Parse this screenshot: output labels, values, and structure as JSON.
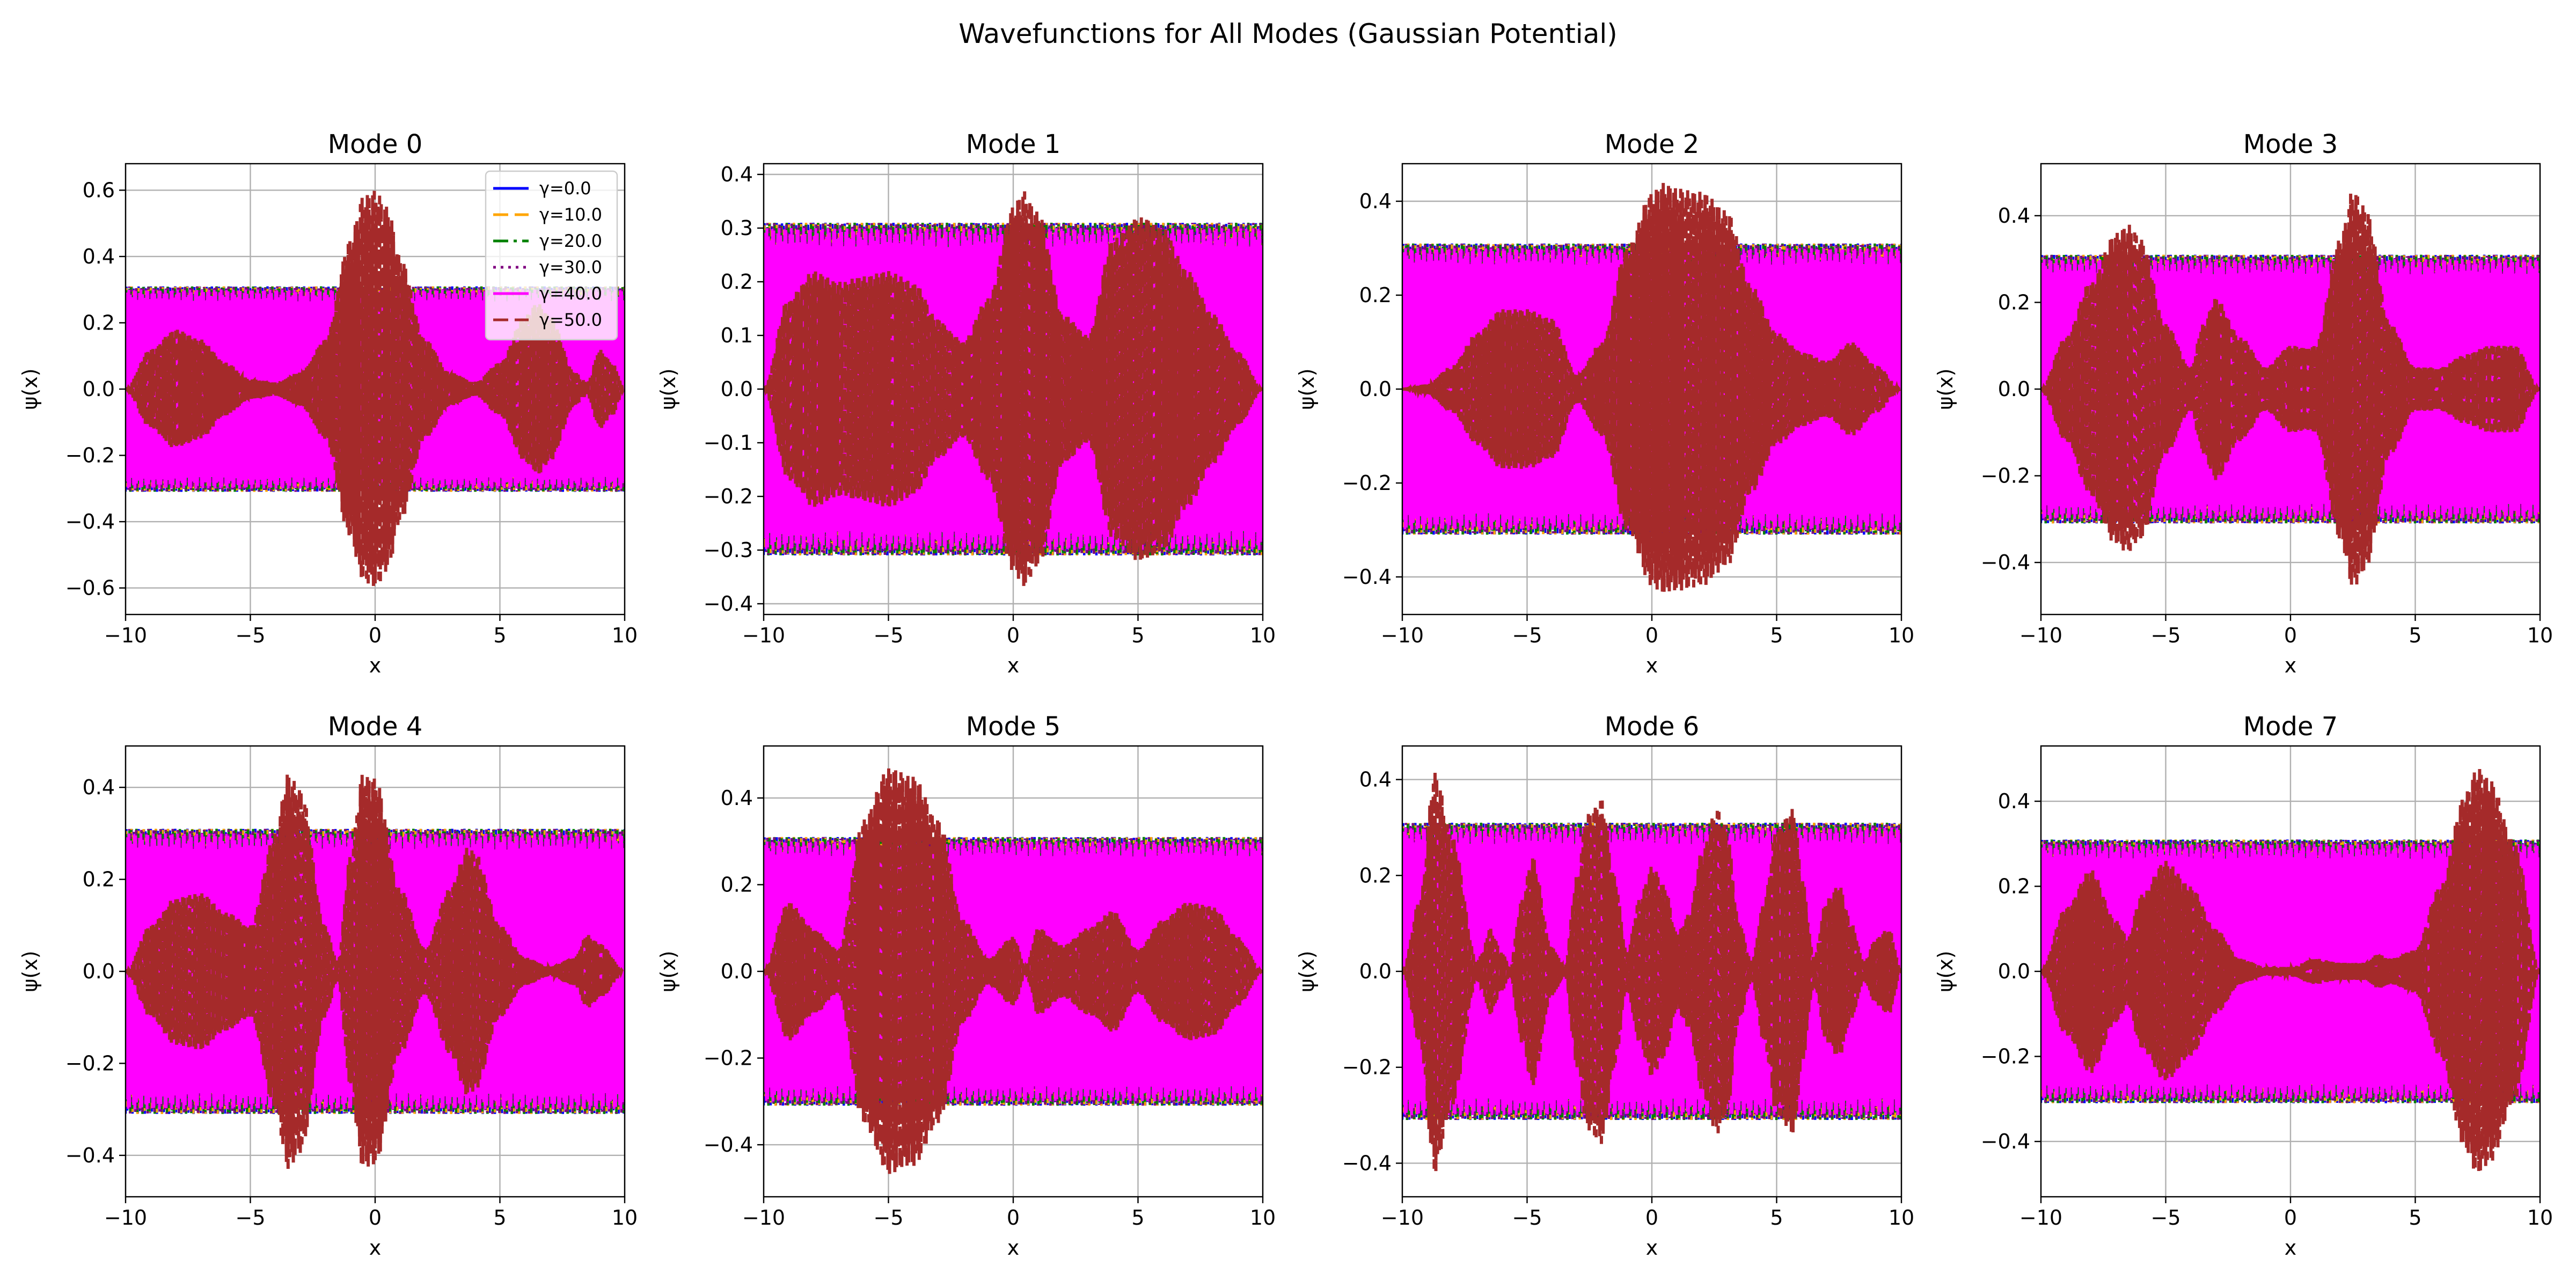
{
  "figure": {
    "title": "Wavefunctions for All Modes (Gaussian Potential)"
  },
  "colors": {
    "series": [
      "#0000ff",
      "#ffa500",
      "#008000",
      "#800080",
      "#ff00ff",
      "#a52a2a"
    ],
    "grid": "#b0b0b0",
    "background": "#ffffff"
  },
  "chart_data": [
    {
      "type": "line",
      "title": "Mode 0",
      "xlabel": "x",
      "ylabel": "ψ(x)",
      "xlim": [
        -10,
        10
      ],
      "ylim": [
        -0.68,
        0.68
      ],
      "grid": true,
      "xticks": [
        "−10",
        "−5",
        "0",
        "5",
        "10"
      ],
      "yticks": [
        {
          "v": -0.6,
          "t": "−0.6"
        },
        {
          "v": -0.4,
          "t": "−0.4"
        },
        {
          "v": -0.2,
          "t": "−0.2"
        },
        {
          "v": 0.0,
          "t": "0.0"
        },
        {
          "v": 0.2,
          "t": "0.2"
        },
        {
          "v": 0.4,
          "t": "0.4"
        },
        {
          "v": 0.6,
          "t": "0.6"
        }
      ],
      "legend": {
        "placement": "upper-right",
        "entries": [
          "γ=0.0",
          "γ=10.0",
          "γ=20.0",
          "γ=30.0",
          "γ=40.0",
          "γ=50.0"
        ]
      },
      "series": [
        {
          "gamma": 0.0,
          "style": "solid",
          "amplitude": 0.31
        },
        {
          "gamma": 10.0,
          "style": "dashed",
          "amplitude": 0.31
        },
        {
          "gamma": 20.0,
          "style": "dashdot",
          "amplitude": 0.31
        },
        {
          "gamma": 30.0,
          "style": "dotted",
          "amplitude": 0.31
        },
        {
          "gamma": 40.0,
          "style": "solid",
          "amplitude": 0.3
        },
        {
          "gamma": 50.0,
          "style": "dashed",
          "envelope": {
            "x": [
              -10,
              -9,
              -8,
              -7,
              -6,
              -5,
              -4,
              -3,
              -2,
              -1,
              -0.5,
              0,
              0.5,
              1,
              2,
              3,
              4,
              5,
              6,
              6.5,
              7,
              8,
              8.5,
              9,
              9.5,
              10
            ],
            "y": [
              0,
              0.12,
              0.18,
              0.15,
              0.08,
              0.03,
              0.02,
              0.05,
              0.15,
              0.45,
              0.58,
              0.6,
              0.55,
              0.4,
              0.15,
              0.05,
              0.02,
              0.08,
              0.22,
              0.26,
              0.22,
              0.05,
              0.02,
              0.12,
              0.08,
              0
            ]
          }
        }
      ]
    },
    {
      "type": "line",
      "title": "Mode 1",
      "xlabel": "x",
      "ylabel": "ψ(x)",
      "xlim": [
        -10,
        10
      ],
      "ylim": [
        -0.42,
        0.42
      ],
      "grid": true,
      "xticks": [
        "−10",
        "−5",
        "0",
        "5",
        "10"
      ],
      "yticks": [
        {
          "v": -0.4,
          "t": "−0.4"
        },
        {
          "v": -0.3,
          "t": "−0.3"
        },
        {
          "v": -0.2,
          "t": "−0.2"
        },
        {
          "v": -0.1,
          "t": "−0.1"
        },
        {
          "v": 0.0,
          "t": "0.0"
        },
        {
          "v": 0.1,
          "t": "0.1"
        },
        {
          "v": 0.2,
          "t": "0.2"
        },
        {
          "v": 0.3,
          "t": "0.3"
        },
        {
          "v": 0.4,
          "t": "0.4"
        }
      ],
      "series": [
        {
          "gamma": 0.0,
          "style": "solid",
          "amplitude": 0.31
        },
        {
          "gamma": 10.0,
          "style": "dashed",
          "amplitude": 0.31
        },
        {
          "gamma": 20.0,
          "style": "dashdot",
          "amplitude": 0.31
        },
        {
          "gamma": 30.0,
          "style": "dotted",
          "amplitude": 0.31
        },
        {
          "gamma": 40.0,
          "style": "solid",
          "amplitude": 0.3
        },
        {
          "gamma": 50.0,
          "style": "dashed",
          "envelope": {
            "x": [
              -10,
              -9,
              -8,
              -7,
              -6,
              -5,
              -4,
              -3,
              -2,
              -1,
              0,
              0.4,
              1,
              2,
              3,
              4,
              5,
              5.3,
              6,
              7,
              8,
              9,
              10
            ],
            "y": [
              0,
              0.17,
              0.22,
              0.2,
              0.21,
              0.22,
              0.2,
              0.13,
              0.09,
              0.17,
              0.34,
              0.37,
              0.33,
              0.14,
              0.1,
              0.28,
              0.32,
              0.32,
              0.3,
              0.22,
              0.14,
              0.07,
              0
            ]
          }
        }
      ]
    },
    {
      "type": "line",
      "title": "Mode 2",
      "xlabel": "x",
      "ylabel": "ψ(x)",
      "xlim": [
        -10,
        10
      ],
      "ylim": [
        -0.48,
        0.48
      ],
      "grid": true,
      "xticks": [
        "−10",
        "−5",
        "0",
        "5",
        "10"
      ],
      "yticks": [
        {
          "v": -0.4,
          "t": "−0.4"
        },
        {
          "v": -0.2,
          "t": "−0.2"
        },
        {
          "v": 0.0,
          "t": "0.0"
        },
        {
          "v": 0.2,
          "t": "0.2"
        },
        {
          "v": 0.4,
          "t": "0.4"
        }
      ],
      "series": [
        {
          "gamma": 0.0,
          "style": "solid",
          "amplitude": 0.31
        },
        {
          "gamma": 10.0,
          "style": "dashed",
          "amplitude": 0.31
        },
        {
          "gamma": 20.0,
          "style": "dashdot",
          "amplitude": 0.31
        },
        {
          "gamma": 30.0,
          "style": "dotted",
          "amplitude": 0.31
        },
        {
          "gamma": 40.0,
          "style": "solid",
          "amplitude": 0.3
        },
        {
          "gamma": 50.0,
          "style": "dashed",
          "envelope": {
            "x": [
              -10,
              -9,
              -8,
              -7,
              -6,
              -5,
              -4,
              -3,
              -2,
              -1,
              0,
              0.5,
              1,
              2,
              3,
              4,
              5,
              6,
              7,
              8,
              9,
              10
            ],
            "y": [
              0,
              0.01,
              0.05,
              0.12,
              0.17,
              0.17,
              0.15,
              0.03,
              0.1,
              0.3,
              0.42,
              0.44,
              0.43,
              0.42,
              0.38,
              0.22,
              0.12,
              0.08,
              0.06,
              0.1,
              0.05,
              0
            ]
          }
        }
      ]
    },
    {
      "type": "line",
      "title": "Mode 3",
      "xlabel": "x",
      "ylabel": "ψ(x)",
      "xlim": [
        -10,
        10
      ],
      "ylim": [
        -0.52,
        0.52
      ],
      "grid": true,
      "xticks": [
        "−10",
        "−5",
        "0",
        "5",
        "10"
      ],
      "yticks": [
        {
          "v": -0.4,
          "t": "−0.4"
        },
        {
          "v": -0.2,
          "t": "−0.2"
        },
        {
          "v": 0.0,
          "t": "0.0"
        },
        {
          "v": 0.2,
          "t": "0.2"
        },
        {
          "v": 0.4,
          "t": "0.4"
        }
      ],
      "series": [
        {
          "gamma": 0.0,
          "style": "solid",
          "amplitude": 0.31
        },
        {
          "gamma": 10.0,
          "style": "dashed",
          "amplitude": 0.31
        },
        {
          "gamma": 20.0,
          "style": "dashdot",
          "amplitude": 0.31
        },
        {
          "gamma": 30.0,
          "style": "dotted",
          "amplitude": 0.31
        },
        {
          "gamma": 40.0,
          "style": "solid",
          "amplitude": 0.3
        },
        {
          "gamma": 50.0,
          "style": "dashed",
          "envelope": {
            "x": [
              -10,
              -9,
              -8,
              -7,
              -6.5,
              -6,
              -5,
              -4,
              -3.5,
              -3,
              -2,
              -1,
              0,
              1,
              2,
              2.5,
              3,
              4,
              5,
              6,
              7,
              8,
              9,
              10
            ],
            "y": [
              0,
              0.12,
              0.25,
              0.36,
              0.38,
              0.35,
              0.15,
              0.05,
              0.15,
              0.21,
              0.12,
              0.05,
              0.1,
              0.1,
              0.35,
              0.46,
              0.42,
              0.15,
              0.05,
              0.05,
              0.08,
              0.1,
              0.1,
              0
            ]
          }
        }
      ]
    },
    {
      "type": "line",
      "title": "Mode 4",
      "xlabel": "x",
      "ylabel": "ψ(x)",
      "xlim": [
        -10,
        10
      ],
      "ylim": [
        -0.49,
        0.49
      ],
      "grid": true,
      "xticks": [
        "−10",
        "−5",
        "0",
        "5",
        "10"
      ],
      "yticks": [
        {
          "v": -0.4,
          "t": "−0.4"
        },
        {
          "v": -0.2,
          "t": "−0.2"
        },
        {
          "v": 0.0,
          "t": "0.0"
        },
        {
          "v": 0.2,
          "t": "0.2"
        },
        {
          "v": 0.4,
          "t": "0.4"
        }
      ],
      "series": [
        {
          "gamma": 0.0,
          "style": "solid",
          "amplitude": 0.31
        },
        {
          "gamma": 10.0,
          "style": "dashed",
          "amplitude": 0.31
        },
        {
          "gamma": 20.0,
          "style": "dashdot",
          "amplitude": 0.31
        },
        {
          "gamma": 30.0,
          "style": "dotted",
          "amplitude": 0.31
        },
        {
          "gamma": 40.0,
          "style": "solid",
          "amplitude": 0.3
        },
        {
          "gamma": 50.0,
          "style": "dashed",
          "envelope": {
            "x": [
              -10,
              -9,
              -8,
              -7,
              -6,
              -5,
              -4,
              -3.5,
              -3,
              -2,
              -1.5,
              -1,
              -0.5,
              0,
              1,
              2,
              3,
              3.7,
              4,
              5,
              6,
              7,
              8,
              8.5,
              9,
              10
            ],
            "y": [
              0,
              0.1,
              0.16,
              0.17,
              0.13,
              0.1,
              0.3,
              0.43,
              0.4,
              0.1,
              0.02,
              0.25,
              0.43,
              0.42,
              0.18,
              0.05,
              0.18,
              0.27,
              0.26,
              0.1,
              0.03,
              0.01,
              0.03,
              0.08,
              0.06,
              0
            ]
          }
        }
      ]
    },
    {
      "type": "line",
      "title": "Mode 5",
      "xlabel": "x",
      "ylabel": "ψ(x)",
      "xlim": [
        -10,
        10
      ],
      "ylim": [
        -0.52,
        0.52
      ],
      "grid": true,
      "xticks": [
        "−10",
        "−5",
        "0",
        "5",
        "10"
      ],
      "yticks": [
        {
          "v": -0.4,
          "t": "−0.4"
        },
        {
          "v": -0.2,
          "t": "−0.2"
        },
        {
          "v": 0.0,
          "t": "0.0"
        },
        {
          "v": 0.2,
          "t": "0.2"
        },
        {
          "v": 0.4,
          "t": "0.4"
        }
      ],
      "series": [
        {
          "gamma": 0.0,
          "style": "solid",
          "amplitude": 0.31
        },
        {
          "gamma": 10.0,
          "style": "dashed",
          "amplitude": 0.31
        },
        {
          "gamma": 20.0,
          "style": "dashdot",
          "amplitude": 0.31
        },
        {
          "gamma": 30.0,
          "style": "dotted",
          "amplitude": 0.31
        },
        {
          "gamma": 40.0,
          "style": "solid",
          "amplitude": 0.3
        },
        {
          "gamma": 50.0,
          "style": "dashed",
          "envelope": {
            "x": [
              -10,
              -9,
              -8,
              -7,
              -6,
              -5,
              -4,
              -3,
              -2,
              -1,
              0,
              0.5,
              1,
              2,
              3,
              4,
              5,
              6,
              7,
              8,
              9,
              10
            ],
            "y": [
              0,
              0.16,
              0.1,
              0.05,
              0.35,
              0.47,
              0.45,
              0.35,
              0.12,
              0.03,
              0.08,
              0.01,
              0.1,
              0.06,
              0.1,
              0.14,
              0.05,
              0.12,
              0.16,
              0.15,
              0.08,
              0
            ]
          }
        }
      ]
    },
    {
      "type": "line",
      "title": "Mode 6",
      "xlabel": "x",
      "ylabel": "ψ(x)",
      "xlim": [
        -10,
        10
      ],
      "ylim": [
        -0.47,
        0.47
      ],
      "grid": true,
      "xticks": [
        "−10",
        "−5",
        "0",
        "5",
        "10"
      ],
      "yticks": [
        {
          "v": -0.4,
          "t": "−0.4"
        },
        {
          "v": -0.2,
          "t": "−0.2"
        },
        {
          "v": 0.0,
          "t": "0.0"
        },
        {
          "v": 0.2,
          "t": "0.2"
        },
        {
          "v": 0.4,
          "t": "0.4"
        }
      ],
      "series": [
        {
          "gamma": 0.0,
          "style": "solid",
          "amplitude": 0.31
        },
        {
          "gamma": 10.0,
          "style": "dashed",
          "amplitude": 0.31
        },
        {
          "gamma": 20.0,
          "style": "dashdot",
          "amplitude": 0.31
        },
        {
          "gamma": 30.0,
          "style": "dotted",
          "amplitude": 0.31
        },
        {
          "gamma": 40.0,
          "style": "solid",
          "amplitude": 0.3
        },
        {
          "gamma": 50.0,
          "style": "dashed",
          "envelope": {
            "x": [
              -10,
              -9.3,
              -8.7,
              -8,
              -7,
              -6.8,
              -6.5,
              -6,
              -5.7,
              -5.2,
              -4.8,
              -4,
              -3.5,
              -3,
              -2.6,
              -2,
              -1.5,
              -1,
              -0.5,
              0,
              0.5,
              1,
              1.5,
              2,
              2.6,
              3,
              3.5,
              4,
              4.5,
              5,
              5.7,
              6,
              6.5,
              7,
              7.5,
              8,
              8.5,
              9,
              9.5,
              10
            ],
            "y": [
              0,
              0.15,
              0.42,
              0.28,
              0.02,
              0.04,
              0.09,
              0.04,
              0.01,
              0.15,
              0.24,
              0.05,
              0.01,
              0.2,
              0.33,
              0.36,
              0.2,
              0.04,
              0.15,
              0.22,
              0.18,
              0.08,
              0.12,
              0.25,
              0.34,
              0.3,
              0.1,
              0.02,
              0.15,
              0.3,
              0.34,
              0.2,
              0.03,
              0.15,
              0.18,
              0.1,
              0.02,
              0.07,
              0.09,
              0
            ]
          }
        }
      ]
    },
    {
      "type": "line",
      "title": "Mode 7",
      "xlabel": "x",
      "ylabel": "ψ(x)",
      "xlim": [
        -10,
        10
      ],
      "ylim": [
        -0.53,
        0.53
      ],
      "grid": true,
      "xticks": [
        "−10",
        "−5",
        "0",
        "5",
        "10"
      ],
      "yticks": [
        {
          "v": -0.4,
          "t": "−0.4"
        },
        {
          "v": -0.2,
          "t": "−0.2"
        },
        {
          "v": 0.0,
          "t": "0.0"
        },
        {
          "v": 0.2,
          "t": "0.2"
        },
        {
          "v": 0.4,
          "t": "0.4"
        }
      ],
      "series": [
        {
          "gamma": 0.0,
          "style": "solid",
          "amplitude": 0.31
        },
        {
          "gamma": 10.0,
          "style": "dashed",
          "amplitude": 0.31
        },
        {
          "gamma": 20.0,
          "style": "dashdot",
          "amplitude": 0.31
        },
        {
          "gamma": 30.0,
          "style": "dotted",
          "amplitude": 0.31
        },
        {
          "gamma": 40.0,
          "style": "solid",
          "amplitude": 0.3
        },
        {
          "gamma": 50.0,
          "style": "dashed",
          "envelope": {
            "x": [
              -10,
              -9,
              -8,
              -7,
              -6.5,
              -6,
              -5,
              -4,
              -3,
              -2,
              -1,
              0,
              1,
              2,
              3,
              3.5,
              4,
              5,
              6,
              7,
              7.5,
              8,
              9,
              10
            ],
            "y": [
              0,
              0.15,
              0.24,
              0.12,
              0.08,
              0.18,
              0.26,
              0.2,
              0.1,
              0.03,
              0.01,
              0.01,
              0.03,
              0.02,
              0.02,
              0.04,
              0.03,
              0.05,
              0.2,
              0.42,
              0.48,
              0.45,
              0.3,
              0
            ]
          }
        }
      ]
    }
  ]
}
